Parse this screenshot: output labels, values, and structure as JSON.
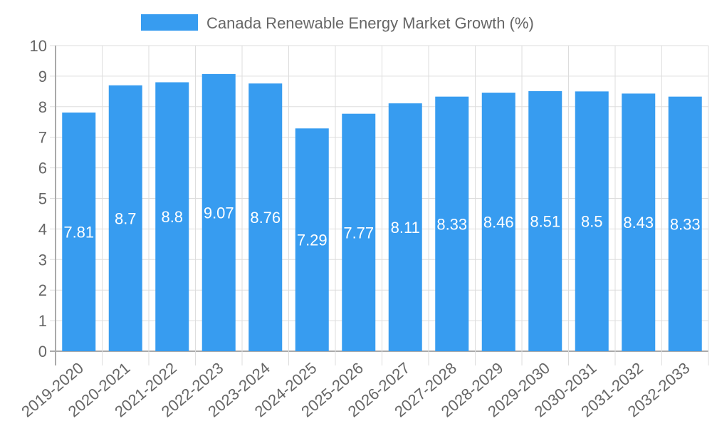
{
  "chart_data": {
    "type": "bar",
    "title": "",
    "legend": {
      "label": "Canada Renewable Energy Market Growth (%)",
      "position": "top"
    },
    "categories": [
      "2019-2020",
      "2020-2021",
      "2021-2022",
      "2022-2023",
      "2023-2024",
      "2024-2025",
      "2025-2026",
      "2026-2027",
      "2027-2028",
      "2028-2029",
      "2029-2030",
      "2030-2031",
      "2031-2032",
      "2032-2033"
    ],
    "values": [
      7.81,
      8.7,
      8.8,
      9.07,
      8.76,
      7.29,
      7.77,
      8.11,
      8.33,
      8.46,
      8.51,
      8.5,
      8.43,
      8.33
    ],
    "data_labels": [
      "7.81",
      "8.7",
      "8.8",
      "9.07",
      "8.76",
      "7.29",
      "7.77",
      "8.11",
      "8.33",
      "8.46",
      "8.51",
      "8.5",
      "8.43",
      "8.33"
    ],
    "yticks": [
      "0",
      "1",
      "2",
      "3",
      "4",
      "5",
      "6",
      "7",
      "8",
      "9",
      "10"
    ],
    "ylim": [
      0,
      10
    ],
    "xlabel": "",
    "ylabel": "",
    "grid": true,
    "colors": {
      "bar": "#379cf0",
      "grid": "#dddddd",
      "axis": "#aaaaaa",
      "text": "#666666"
    }
  }
}
